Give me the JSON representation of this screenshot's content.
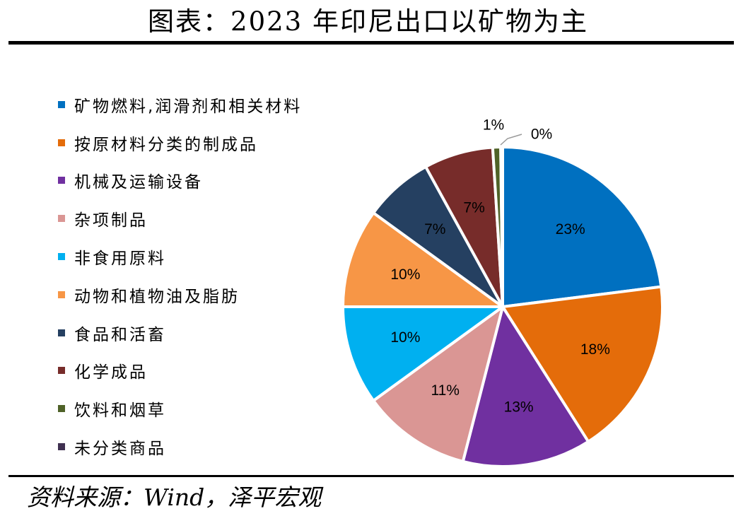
{
  "title": "图表：2023 年印尼出口以矿物为主",
  "source": "资料来源：Wind，泽平宏观",
  "chart_data": {
    "type": "pie",
    "title": "图表：2023 年印尼出口以矿物为主",
    "legend_position": "left",
    "start_angle_deg": 0,
    "direction": "clockwise",
    "slices": [
      {
        "label": "矿物燃料,润滑剂和相关材料",
        "value": 23,
        "display": "23%",
        "color": "#0070C0"
      },
      {
        "label": "按原材料分类的制成品",
        "value": 18,
        "display": "18%",
        "color": "#E46C0A"
      },
      {
        "label": "机械及运输设备",
        "value": 13,
        "display": "13%",
        "color": "#7030A0"
      },
      {
        "label": "杂项制品",
        "value": 11,
        "display": "11%",
        "color": "#DA9694"
      },
      {
        "label": "非食用原料",
        "value": 10,
        "display": "10%",
        "color": "#00B0F0"
      },
      {
        "label": "动物和植物油及脂肪",
        "value": 10,
        "display": "10%",
        "color": "#F79646"
      },
      {
        "label": "食品和活畜",
        "value": 7,
        "display": "7%",
        "color": "#254061"
      },
      {
        "label": "化学成品",
        "value": 7,
        "display": "7%",
        "color": "#772C2A"
      },
      {
        "label": "饮料和烟草",
        "value": 0.8,
        "display": "1%",
        "color": "#4F6228"
      },
      {
        "label": "未分类商品",
        "value": 0.2,
        "display": "0%",
        "color": "#403151"
      }
    ]
  }
}
